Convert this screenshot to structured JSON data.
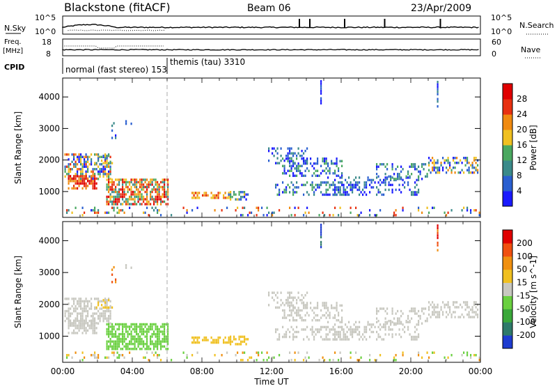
{
  "header": {
    "station": "Blackstone (fitACF)",
    "beam": "Beam 06",
    "date": "23/Apr/2009"
  },
  "top_panels": {
    "nsky_label": "N.Sky",
    "nsky_ticks": [
      "10^5",
      "10^0"
    ],
    "nsearch_label": "N.Search",
    "nsearch_ticks": [
      "10^5",
      "10^0"
    ],
    "freq_label_line1": "Freq.",
    "freq_label_line2": "[MHz]",
    "freq_ticks": [
      "18",
      "8"
    ],
    "nave_label": "Nave",
    "nave_ticks": [
      "60",
      "0"
    ],
    "cpid_label": "CPID",
    "cpid_modes": [
      {
        "text": "normal (fast stereo) 153",
        "start_hour": 0
      },
      {
        "text": "themis (tau) 3310",
        "start_hour": 6.0
      }
    ]
  },
  "chart_data": [
    {
      "type": "heatmap",
      "name": "power-panel",
      "ylabel": "Slant Range [km]",
      "ylim": [
        180,
        4600
      ],
      "yticks": [
        "1000",
        "2000",
        "3000",
        "4000"
      ],
      "colorbar_label": "Power [dB]",
      "colorbar_ticks": [
        "28",
        "24",
        "20",
        "16",
        "12",
        "8",
        "4"
      ],
      "colors": [
        "#1a1aff",
        "#2a5fd0",
        "#3a8a8a",
        "#4aa860",
        "#f0c020",
        "#f08a10",
        "#e83010",
        "#e00000"
      ]
    },
    {
      "type": "heatmap",
      "name": "velocity-panel",
      "ylabel": "Slant Range [km]",
      "ylim": [
        180,
        4600
      ],
      "yticks": [
        "1000",
        "2000",
        "3000",
        "4000"
      ],
      "colorbar_label": "Velocity [m s^-1]",
      "colorbar_ticks": [
        "200",
        "100",
        "50",
        "15",
        "-15",
        "-50",
        "-100",
        "-200"
      ],
      "colors": [
        "#1e3cd0",
        "#2e7a6a",
        "#3aa83a",
        "#6ad040",
        "#c8c8c0",
        "#f0c020",
        "#f09010",
        "#f05010",
        "#e00000"
      ]
    }
  ],
  "time_axis": {
    "xlabel": "Time UT",
    "xlim_hours": [
      0,
      24
    ],
    "ticks": [
      "00:00",
      "04:00",
      "08:00",
      "12:00",
      "16:00",
      "20:00",
      "00:00"
    ]
  },
  "colors": {
    "gray_scatter": "#c8c8c0",
    "mode_line": "#999999"
  }
}
